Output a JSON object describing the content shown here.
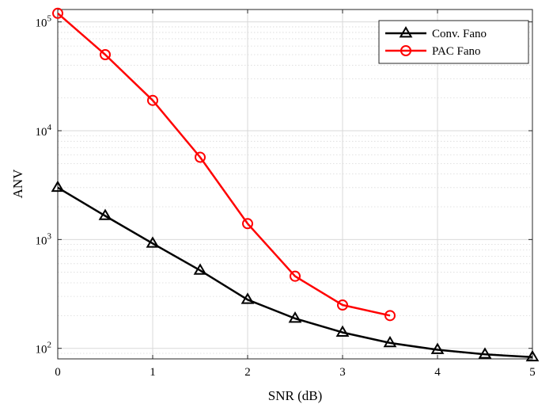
{
  "chart_data": {
    "type": "line",
    "xlabel": "SNR (dB)",
    "ylabel": "ANV",
    "xlim": [
      0,
      5
    ],
    "ylim": [
      80,
      130000
    ],
    "yscale": "log",
    "grid": true,
    "legend_position": "top-right",
    "x_ticks": [
      "0",
      "1",
      "2",
      "3",
      "4",
      "5"
    ],
    "y_ticks": [
      {
        "base": "10",
        "exp": "2",
        "value": 100
      },
      {
        "base": "10",
        "exp": "3",
        "value": 1000
      },
      {
        "base": "10",
        "exp": "4",
        "value": 10000
      },
      {
        "base": "10",
        "exp": "5",
        "value": 100000
      }
    ],
    "series": [
      {
        "name": "Conv. Fano",
        "color": "#000000",
        "marker": "triangle",
        "x": [
          0,
          0.5,
          1,
          1.5,
          2,
          2.5,
          3,
          3.5,
          4,
          4.5,
          5
        ],
        "y": [
          3000,
          1650,
          920,
          520,
          280,
          188,
          140,
          112,
          97,
          88,
          83
        ]
      },
      {
        "name": "PAC Fano",
        "color": "#ff0000",
        "marker": "circle",
        "x": [
          0,
          0.5,
          1,
          1.5,
          2,
          2.5,
          3,
          3.5
        ],
        "y": [
          120000,
          50000,
          19000,
          5700,
          1400,
          460,
          250,
          200
        ]
      }
    ]
  }
}
